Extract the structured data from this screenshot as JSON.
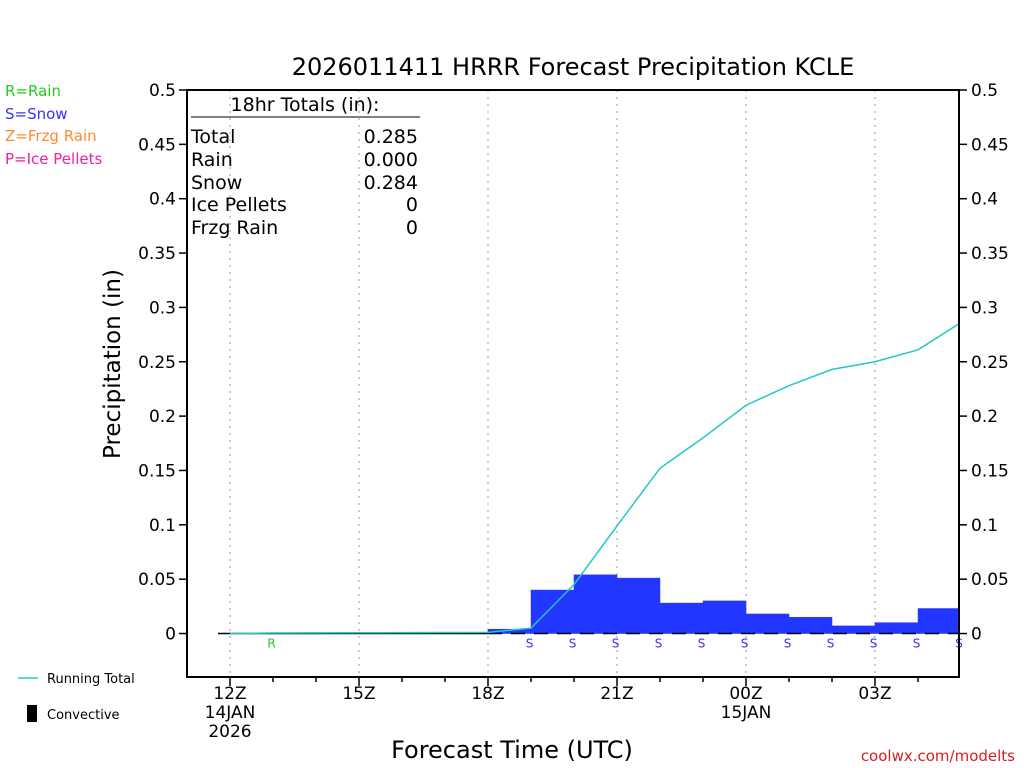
{
  "chart_data": {
    "type": "bar",
    "title": "2026011411 HRRR Forecast Precipitation KCLE",
    "xlabel": "Forecast Time (UTC)",
    "ylabel": "Precipitation (in)",
    "ylim": [
      -0.04,
      0.5
    ],
    "y_ticks": [
      0,
      0.05,
      0.1,
      0.15,
      0.2,
      0.25,
      0.3,
      0.35,
      0.4,
      0.45,
      0.5
    ],
    "y_tick_labels": [
      "0",
      "0.05",
      "0.1",
      "0.15",
      "0.2",
      "0.25",
      "0.3",
      "0.35",
      "0.4",
      "0.45",
      "0.5"
    ],
    "x_range_hours": [
      -1,
      17
    ],
    "x_ticks": [
      {
        "hour": 0,
        "lines": [
          "12Z",
          "14JAN",
          "2026"
        ]
      },
      {
        "hour": 3,
        "lines": [
          "15Z"
        ]
      },
      {
        "hour": 6,
        "lines": [
          "18Z"
        ]
      },
      {
        "hour": 9,
        "lines": [
          "21Z"
        ]
      },
      {
        "hour": 12,
        "lines": [
          "00Z",
          "15JAN"
        ]
      },
      {
        "hour": 15,
        "lines": [
          "03Z"
        ]
      }
    ],
    "legend_types": [
      {
        "text": "R=Rain",
        "color": "#22cc22"
      },
      {
        "text": "S=Snow",
        "color": "#3333ff"
      },
      {
        "text": "Z=Frzg Rain",
        "color": "#ff8833"
      },
      {
        "text": "P=Ice Pellets",
        "color": "#ee2299"
      }
    ],
    "legend_lines": {
      "running_total": "Running Total",
      "convective": "Convective"
    },
    "totals": {
      "header": "18hr Totals (in):",
      "rows": [
        {
          "label": "Total",
          "value": "0.285"
        },
        {
          "label": "Rain",
          "value": "0.000"
        },
        {
          "label": "Snow",
          "value": "0.284"
        },
        {
          "label": "Ice Pellets",
          "value": "0"
        },
        {
          "label": "Frzg Rain",
          "value": "0"
        }
      ]
    },
    "hourly": {
      "hours": [
        1,
        2,
        3,
        4,
        5,
        6,
        7,
        8,
        9,
        10,
        11,
        12,
        13,
        14,
        15,
        16,
        17
      ],
      "precip": [
        0.0,
        0.0,
        0.0,
        0.0,
        0.0,
        0.0,
        0.004,
        0.04,
        0.054,
        0.051,
        0.028,
        0.03,
        0.018,
        0.015,
        0.007,
        0.01,
        0.023
      ],
      "ptype": [
        "R",
        "",
        "",
        "",
        "",
        "",
        "S",
        "S",
        "S",
        "S",
        "S",
        "S",
        "S",
        "S",
        "S",
        "S",
        "S"
      ]
    },
    "running_total": {
      "hours": [
        0,
        1,
        2,
        3,
        4,
        5,
        6,
        7,
        8,
        9,
        10,
        11,
        12,
        13,
        14,
        15,
        16,
        17
      ],
      "values": [
        0.0,
        0.0005,
        0.0006,
        0.0007,
        0.0008,
        0.0009,
        0.001,
        0.005,
        0.045,
        0.099,
        0.152,
        0.18,
        0.21,
        0.228,
        0.243,
        0.25,
        0.261,
        0.285
      ]
    },
    "colors": {
      "bar": "#2236ff",
      "running_total": "#22c8c8",
      "convective": "#000000",
      "grid": "#aaaaaa"
    }
  },
  "watermark": "coolwx.com/modelts"
}
